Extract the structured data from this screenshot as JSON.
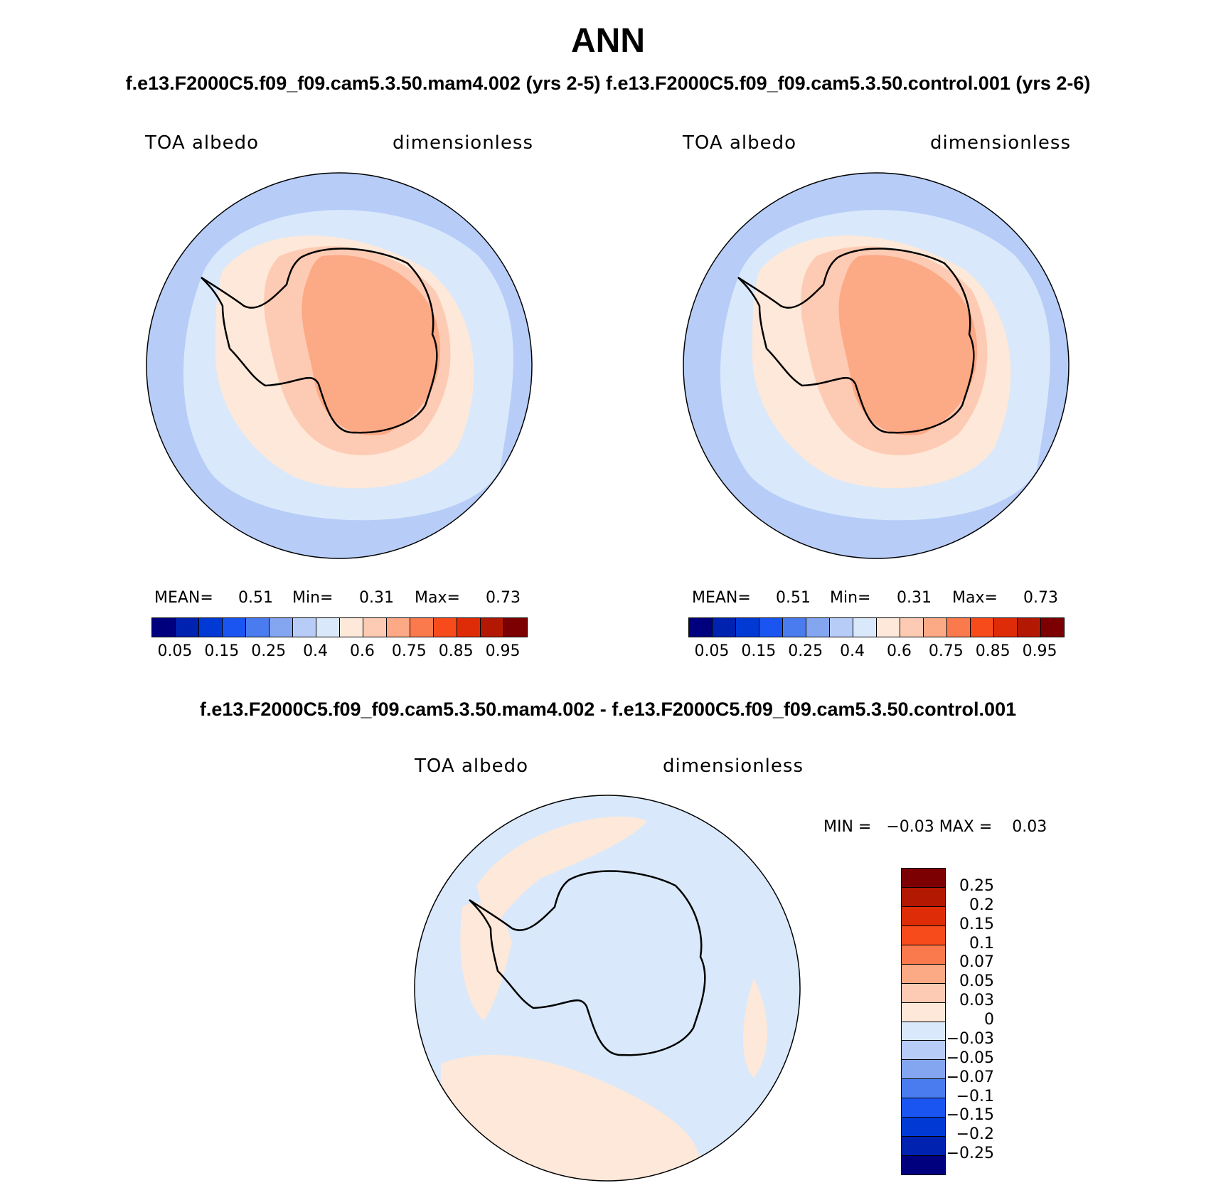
{
  "header": {
    "title": "ANN",
    "subtitle": "f.e13.F2000C5.f09_f09.cam5.3.50.mam4.002 (yrs 2-5) f.e13.F2000C5.f09_f09.cam5.3.50.control.001 (yrs 2-6)",
    "diff_title": "f.e13.F2000C5.f09_f09.cam5.3.50.mam4.002 - f.e13.F2000C5.f09_f09.cam5.3.50.control.001"
  },
  "panels": [
    {
      "variable": "TOA albedo",
      "units": "dimensionless",
      "mean_label": "MEAN=",
      "mean_value": "0.51",
      "min_label": "Min=",
      "min_value": "0.31",
      "max_label": "Max=",
      "max_value": "0.73"
    },
    {
      "variable": "TOA albedo",
      "units": "dimensionless",
      "mean_label": "MEAN=",
      "mean_value": "0.51",
      "min_label": "Min=",
      "min_value": "0.31",
      "max_label": "Max=",
      "max_value": "0.73"
    },
    {
      "variable": "TOA albedo",
      "units": "dimensionless",
      "minmax_text": "MIN =   −0.03 MAX =    0.03"
    }
  ],
  "colorbar_abs": {
    "colors": [
      "#00007f",
      "#0022b0",
      "#0039d4",
      "#1a55f2",
      "#4a7cf0",
      "#84a6f0",
      "#b7cdf8",
      "#d9e9fb",
      "#fde8d9",
      "#fdcbb4",
      "#fca985",
      "#fb7a4d",
      "#f74b1c",
      "#df2c08",
      "#b21802",
      "#7c0002"
    ],
    "tick_labels": [
      "0.05",
      "0.15",
      "0.25",
      "0.4",
      "0.6",
      "0.75",
      "0.85",
      "0.95"
    ]
  },
  "colorbar_diff": {
    "colors": [
      "#7c0002",
      "#b21802",
      "#df2c08",
      "#f74b1c",
      "#fb7a4d",
      "#fca985",
      "#fdcbb4",
      "#fde8d9",
      "#d9e9fb",
      "#b7cdf8",
      "#84a6f0",
      "#4a7cf0",
      "#1a55f2",
      "#0039d4",
      "#0022b0",
      "#00007f"
    ],
    "tick_labels": [
      "0.25",
      "0.2",
      "0.15",
      "0.1",
      "0.07",
      "0.05",
      "0.03",
      "0",
      "−0.03",
      "−0.05",
      "−0.07",
      "−0.1",
      "−0.15",
      "−0.2",
      "−0.25"
    ]
  },
  "map_colors": {
    "outer_ocean": "#b7cdf8",
    "inner_ring": "#d9e9fb",
    "coastal": "#fde8d9",
    "continent_low": "#fdcbb4",
    "continent_high": "#fca985",
    "diff_background": "#d9e9fb",
    "diff_positive": "#fde8d9"
  }
}
